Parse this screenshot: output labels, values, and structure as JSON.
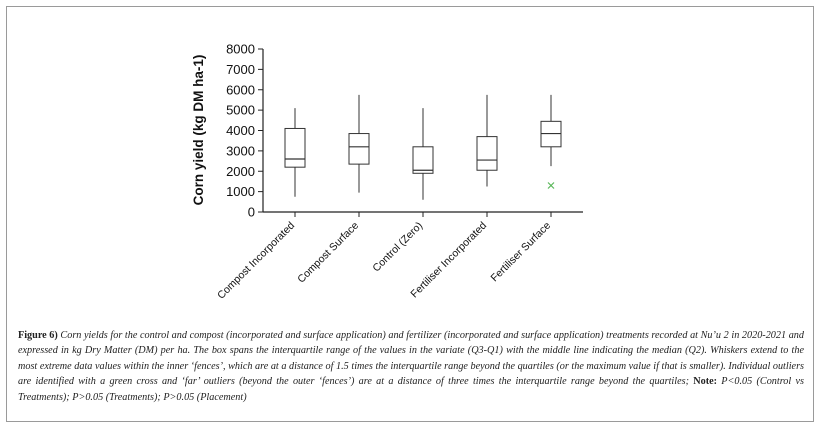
{
  "chart_data": {
    "type": "box",
    "categories": [
      "Compost Incorporated",
      "Compost Surface",
      "Control (Zero)",
      "Fertiliser Incorporated",
      "Fertiliser Surface"
    ],
    "boxes": [
      {
        "min": 750,
        "q1": 2200,
        "median": 2600,
        "q3": 4100,
        "max": 5100,
        "outliers": []
      },
      {
        "min": 950,
        "q1": 2350,
        "median": 3200,
        "q3": 3850,
        "max": 5750,
        "outliers": []
      },
      {
        "min": 600,
        "q1": 1900,
        "median": 2050,
        "q3": 3200,
        "max": 5100,
        "outliers": []
      },
      {
        "min": 1250,
        "q1": 2050,
        "median": 2550,
        "q3": 3700,
        "max": 5750,
        "outliers": []
      },
      {
        "min": 2250,
        "q1": 3200,
        "median": 3850,
        "q3": 4450,
        "max": 5750,
        "outliers": [
          1300
        ]
      }
    ],
    "ylabel": "Corn yield (kg DM ha-1)",
    "ylim": [
      0,
      8000
    ],
    "yticks": [
      "0",
      "1000",
      "2000",
      "3000",
      "4000",
      "5000",
      "6000",
      "7000",
      "8000"
    ],
    "grid": false,
    "outlier_color": "#5cb85c"
  },
  "caption": {
    "label": "Figure 6)",
    "text": " Corn yields for the control and compost (incorporated and surface application) and fertilizer (incorporated and surface application) treatments recorded at Nu’u 2 in 2020-2021 and expressed in kg Dry Matter (DM) per ha. The box spans the interquartile range of the values in the variate (Q3-Q1) with the middle line indicating the median (Q2). Whiskers extend to the most extreme data values within the inner ‘fences’, which are at a distance of 1.5 times the interquartile range beyond the quartiles (or the maximum value if that is smaller). Individual outliers are identified with a green cross and ‘far’ outliers (beyond the outer ‘fences’) are at a distance of three times the interquartile range beyond the quartiles; ",
    "note_label": "Note:",
    "note_text": " P<0.05 (Control vs Treatments); P>0.05 (Treatments); P>0.05 (Placement)"
  }
}
